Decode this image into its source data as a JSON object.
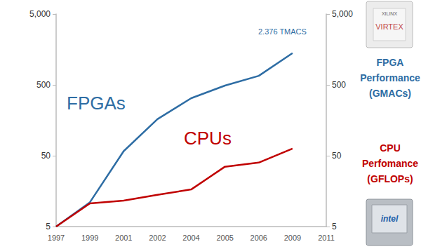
{
  "chart_data": {
    "type": "line",
    "categories": [
      "1997",
      "1999",
      "2001",
      "2002",
      "2004",
      "2005",
      "2006",
      "2009",
      "2011"
    ],
    "series": [
      {
        "name": "FPGAs",
        "color": "#2e6da4",
        "values": [
          5,
          11,
          58,
          164,
          324,
          489,
          670,
          1400,
          null
        ]
      },
      {
        "name": "CPUs",
        "color": "#c00000",
        "values": [
          5,
          10.6,
          11.6,
          14,
          16.7,
          35,
          40,
          63,
          null
        ]
      }
    ],
    "log": "y",
    "grid": false,
    "ylim": [
      5,
      5000
    ],
    "yticks": [
      5,
      50,
      500,
      {
        "value": 5000,
        "label": "5,000"
      }
    ],
    "y2lim": [
      5,
      5000
    ],
    "y2ticks": [
      5,
      50,
      500,
      {
        "value": 5000,
        "label": "5,000"
      }
    ],
    "annotations": [
      {
        "text": "2.376 TMACS",
        "color": "#2e6da4"
      },
      {
        "text": "FPGA\nPerformance\n(GMACs)",
        "color": "#2e6da4"
      },
      {
        "text": "CPU\nPerfomance\n(GFLOPs)",
        "color": "#c00000"
      },
      {
        "text": "XILINX",
        "color": "#666666"
      },
      {
        "text": "VIRTEX",
        "color": "#c04848"
      },
      {
        "text": "intel",
        "color": "#1f5fa8"
      }
    ]
  }
}
